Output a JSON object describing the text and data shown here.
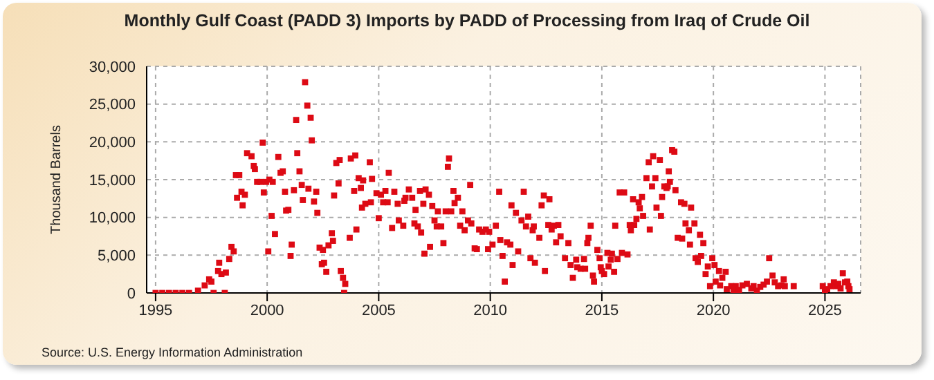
{
  "chart_data": {
    "type": "scatter",
    "title": "Monthly Gulf Coast (PADD 3) Imports by PADD of Processing from Iraq of Crude Oil",
    "ylabel": "Thousand Barrels",
    "annotations": [
      "Source: U.S. Energy Information Administration"
    ],
    "marker": "square",
    "grid": true,
    "xlim": [
      1994.6,
      2026.6
    ],
    "xticks": [
      1995,
      2000,
      2005,
      2010,
      2015,
      2020,
      2025
    ],
    "ylim": [
      0,
      30000
    ],
    "yticks": [
      0,
      {
        "value": 5000,
        "label": "5,000"
      },
      {
        "value": 10000,
        "label": "10,000"
      },
      {
        "value": 15000,
        "label": "15,000"
      },
      {
        "value": 20000,
        "label": "20,000"
      },
      {
        "value": 25000,
        "label": "25,000"
      },
      {
        "value": 30000,
        "label": "30,000"
      }
    ],
    "series": [
      {
        "color": "#dd0a14",
        "x": [
          1995.0,
          1995.3,
          1995.6,
          1995.9,
          1996.2,
          1996.5,
          1996.9,
          1997.2,
          1997.4,
          1997.5,
          1997.6,
          1997.8,
          1997.85,
          1997.95,
          1998.1,
          1998.15,
          1998.3,
          1998.4,
          1998.5,
          1998.6,
          1998.65,
          1998.75,
          1998.85,
          1998.9,
          1999.0,
          1999.1,
          1999.3,
          1999.4,
          1999.45,
          1999.55,
          1999.7,
          1999.8,
          1999.85,
          1999.95,
          2000.05,
          2000.1,
          2000.2,
          2000.25,
          2000.35,
          2000.5,
          2000.6,
          2000.7,
          2000.8,
          2000.85,
          2000.95,
          2001.05,
          2001.1,
          2001.2,
          2001.3,
          2001.35,
          2001.45,
          2001.55,
          2001.6,
          2001.7,
          2001.8,
          2001.85,
          2001.95,
          2002.0,
          2002.1,
          2002.2,
          2002.25,
          2002.35,
          2002.45,
          2002.5,
          2002.55,
          2002.65,
          2002.75,
          2002.9,
          2002.95,
          2003.0,
          2003.1,
          2003.2,
          2003.25,
          2003.3,
          2003.4,
          2003.45,
          2003.5,
          2003.7,
          2003.75,
          2003.9,
          2003.95,
          2004.0,
          2004.1,
          2004.2,
          2004.25,
          2004.3,
          2004.4,
          2004.6,
          2004.65,
          2004.7,
          2004.9,
          2005.0,
          2005.1,
          2005.2,
          2005.3,
          2005.4,
          2005.45,
          2005.6,
          2005.7,
          2005.85,
          2005.9,
          2006.1,
          2006.15,
          2006.2,
          2006.35,
          2006.5,
          2006.6,
          2006.65,
          2006.75,
          2006.85,
          2006.9,
          2007.0,
          2007.05,
          2007.1,
          2007.25,
          2007.3,
          2007.4,
          2007.5,
          2007.6,
          2007.65,
          2007.8,
          2007.9,
          2008.0,
          2008.1,
          2008.15,
          2008.25,
          2008.35,
          2008.4,
          2008.55,
          2008.65,
          2008.75,
          2008.85,
          2009.0,
          2009.1,
          2009.15,
          2009.3,
          2009.4,
          2009.5,
          2009.65,
          2009.8,
          2009.9,
          2009.95,
          2010.1,
          2010.25,
          2010.4,
          2010.45,
          2010.55,
          2010.65,
          2010.75,
          2010.9,
          2010.95,
          2011.0,
          2011.15,
          2011.25,
          2011.4,
          2011.5,
          2011.6,
          2011.7,
          2011.8,
          2011.9,
          2011.95,
          2012.0,
          2012.2,
          2012.3,
          2012.4,
          2012.45,
          2012.6,
          2012.65,
          2012.75,
          2012.85,
          2012.95,
          2013.05,
          2013.15,
          2013.35,
          2013.5,
          2013.6,
          2013.7,
          2013.85,
          2013.9,
          2014.05,
          2014.2,
          2014.25,
          2014.35,
          2014.4,
          2014.5,
          2014.6,
          2014.65,
          2014.8,
          2014.9,
          2014.95,
          2015.0,
          2015.1,
          2015.25,
          2015.3,
          2015.4,
          2015.45,
          2015.55,
          2015.6,
          2015.7,
          2015.8,
          2015.9,
          2016.0,
          2016.15,
          2016.25,
          2016.3,
          2016.4,
          2016.45,
          2016.55,
          2016.65,
          2016.7,
          2016.8,
          2016.85,
          2017.0,
          2017.1,
          2017.15,
          2017.25,
          2017.3,
          2017.4,
          2017.45,
          2017.6,
          2017.65,
          2017.7,
          2017.8,
          2017.9,
          2017.95,
          2018.0,
          2018.05,
          2018.15,
          2018.25,
          2018.3,
          2018.4,
          2018.55,
          2018.6,
          2018.7,
          2018.75,
          2018.9,
          2018.95,
          2019.0,
          2019.15,
          2019.2,
          2019.3,
          2019.4,
          2019.45,
          2019.55,
          2019.65,
          2019.75,
          2019.85,
          2019.95,
          2020.05,
          2020.1,
          2020.25,
          2020.3,
          2020.4,
          2020.55,
          2020.6,
          2020.8,
          2020.9,
          2021.0,
          2021.15,
          2021.3,
          2021.5,
          2021.7,
          2021.8,
          2021.95,
          2022.1,
          2022.25,
          2022.4,
          2022.5,
          2022.65,
          2022.75,
          2022.9,
          2023.05,
          2023.15,
          2023.2,
          2023.6,
          2024.9,
          2025.0,
          2025.1,
          2025.25,
          2025.4,
          2025.5,
          2025.6,
          2025.7,
          2025.8,
          2025.9,
          2026.0,
          2026.05,
          2026.1
        ],
        "values": [
          0,
          0,
          0,
          0,
          0,
          0,
          300,
          1000,
          1800,
          1500,
          0,
          2900,
          4000,
          2500,
          0,
          2700,
          4500,
          6100,
          5500,
          15600,
          12600,
          15600,
          13400,
          11600,
          13000,
          18500,
          18100,
          16800,
          16400,
          14700,
          14700,
          19900,
          13300,
          14700,
          5500,
          15000,
          10200,
          14700,
          7800,
          18000,
          15900,
          16100,
          13400,
          10900,
          11000,
          4900,
          6400,
          13600,
          22900,
          18500,
          16100,
          14300,
          12300,
          27900,
          24800,
          13800,
          23200,
          20200,
          12100,
          13400,
          10600,
          6000,
          3800,
          5700,
          4000,
          2800,
          6300,
          7900,
          6900,
          12900,
          17200,
          14500,
          17600,
          2900,
          2000,
          0,
          1200,
          7300,
          17800,
          13500,
          18200,
          8400,
          15200,
          13900,
          11300,
          14900,
          11800,
          17300,
          12000,
          15100,
          13200,
          9900,
          13000,
          12000,
          13500,
          12000,
          15900,
          8600,
          13400,
          11800,
          9600,
          8900,
          12200,
          12600,
          13700,
          12600,
          9200,
          11000,
          8800,
          13500,
          8000,
          11800,
          5200,
          13700,
          13000,
          6100,
          11500,
          9600,
          8800,
          10800,
          8800,
          6600,
          10800,
          16700,
          17800,
          10800,
          13500,
          11900,
          12600,
          8900,
          10800,
          8300,
          9600,
          14300,
          9200,
          5900,
          5800,
          8400,
          8100,
          8400,
          5800,
          8100,
          6400,
          8900,
          13400,
          7000,
          4900,
          1500,
          6700,
          6400,
          11600,
          3700,
          10600,
          5500,
          9600,
          13400,
          8800,
          10100,
          4600,
          8300,
          8800,
          4000,
          7300,
          11600,
          12900,
          2900,
          9000,
          12400,
          8400,
          8900,
          6700,
          9000,
          7500,
          4600,
          6600,
          3700,
          2000,
          4400,
          3400,
          3200,
          4500,
          3200,
          6600,
          7300,
          8900,
          2300,
          1500,
          5700,
          4600,
          3400,
          2900,
          2500,
          5300,
          3500,
          4400,
          5200,
          2800,
          8900,
          4500,
          13300,
          5300,
          13300,
          5100,
          9000,
          8300,
          12400,
          9000,
          9800,
          12000,
          11200,
          12700,
          10200,
          15200,
          17300,
          8400,
          14100,
          18100,
          15200,
          11300,
          17600,
          10200,
          12700,
          14100,
          13900,
          14100,
          16100,
          14700,
          18900,
          18700,
          13600,
          7300,
          12000,
          7200,
          11800,
          9200,
          8300,
          6400,
          11300,
          9200,
          4600,
          4100,
          7700,
          4900,
          6600,
          2500,
          3500,
          900,
          4600,
          3700,
          1500,
          2900,
          1000,
          2000,
          2800,
          500,
          900,
          400,
          900,
          400,
          1000,
          1200,
          600,
          900,
          300,
          800,
          1100,
          1500,
          4600,
          2300,
          1400,
          900,
          1000,
          1800,
          900,
          900,
          900,
          300,
          500,
          900,
          1400,
          900,
          1200,
          600,
          2600,
          1400,
          1500,
          900,
          500
        ]
      }
    ]
  }
}
